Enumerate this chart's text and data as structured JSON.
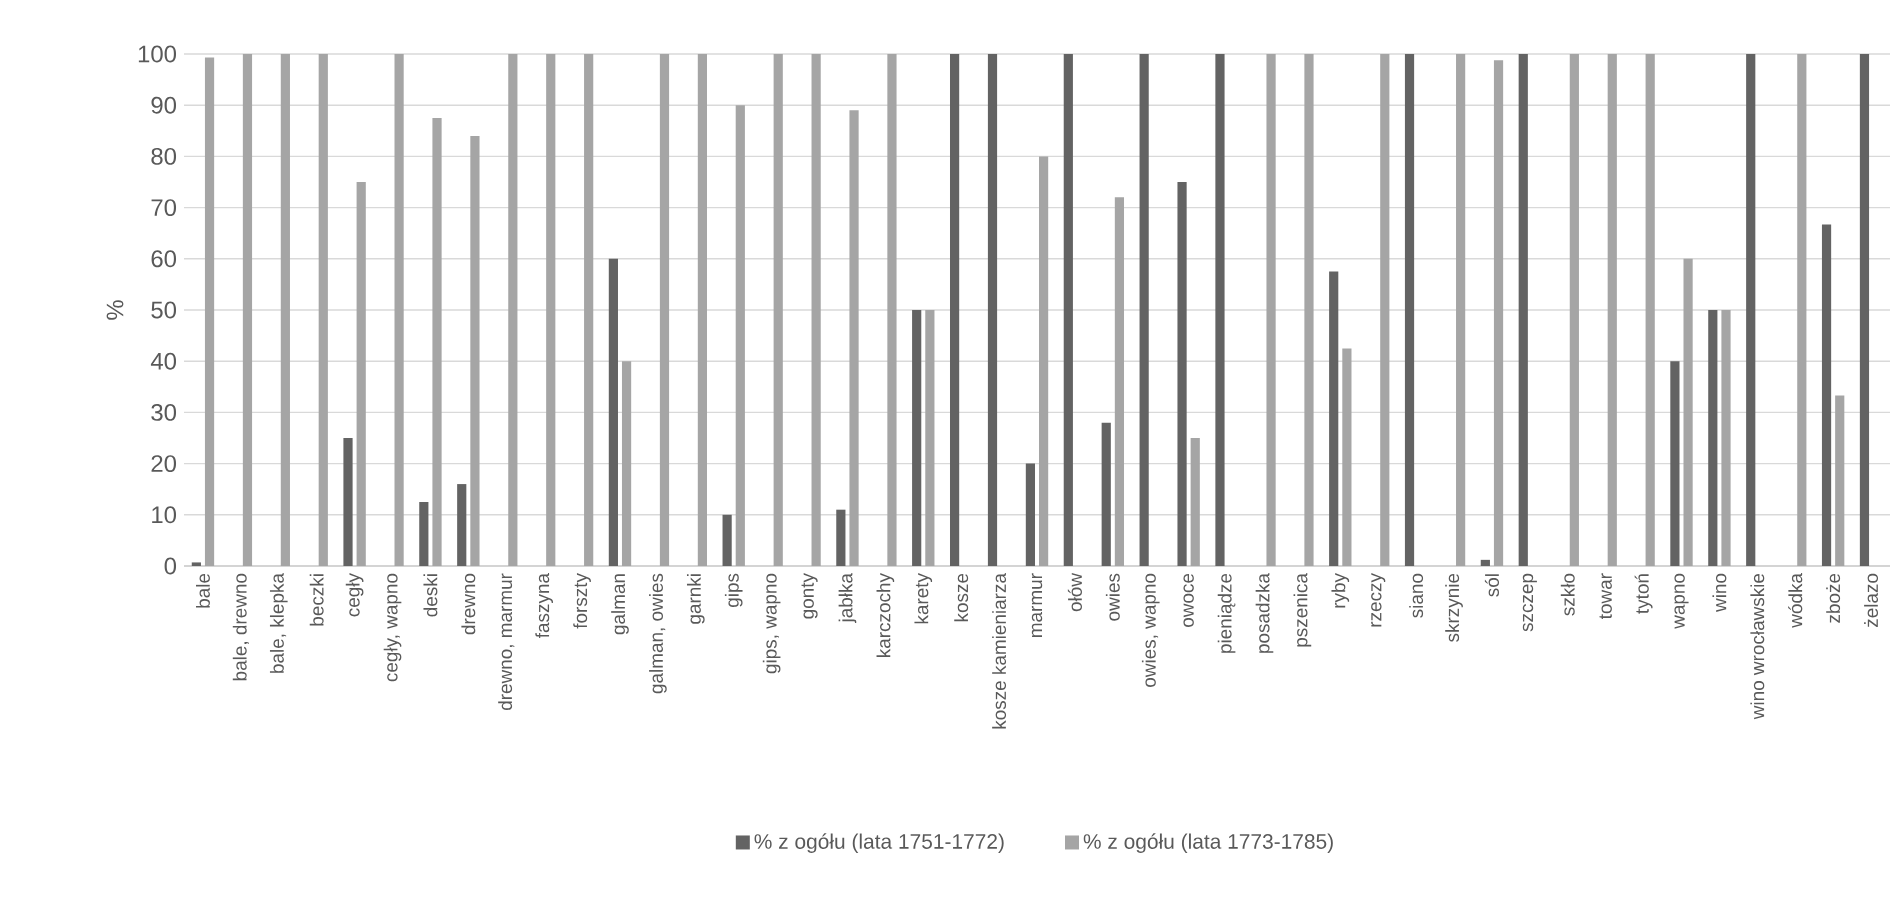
{
  "chart_data": {
    "type": "bar",
    "ylabel": "%",
    "categories": [
      "bale",
      "bale, drewno",
      "bale, klepka",
      "beczki",
      "cegły",
      "cegły, wapno",
      "deski",
      "drewno",
      "drewno, marmur",
      "faszyna",
      "forszty",
      "galman",
      "galman, owies",
      "garnki",
      "gips",
      "gips, wapno",
      "gonty",
      "jabłka",
      "karczochy",
      "karety",
      "kosze",
      "kosze kamieniarza",
      "marmur",
      "ołów",
      "owies",
      "owies, wapno",
      "owoce",
      "pieniądze",
      "posadzka",
      "pszenica",
      "ryby",
      "rzeczy",
      "siano",
      "skrzynie",
      "sól",
      "szczep",
      "szkło",
      "towar",
      "tytoń",
      "wapno",
      "wino",
      "wino wrocławskie",
      "wódka",
      "zboże",
      "żelazo"
    ],
    "series": [
      {
        "name": "% z ogółu (lata 1751-1772)",
        "color": "#636363",
        "values": [
          0.7,
          0,
          0,
          0,
          25,
          0,
          12.5,
          16,
          0,
          0,
          0,
          60,
          0,
          0,
          10,
          0,
          0,
          11,
          0,
          50,
          100,
          100,
          20,
          100,
          28,
          100,
          75,
          100,
          0,
          0,
          57.5,
          0,
          100,
          0,
          1.2,
          100,
          0,
          0,
          0,
          40,
          50,
          100,
          0,
          66.7,
          100
        ]
      },
      {
        "name": "% z ogółu (lata 1773-1785)",
        "color": "#a5a5a5",
        "values": [
          99.3,
          100,
          100,
          100,
          75,
          100,
          87.5,
          84,
          100,
          100,
          100,
          40,
          100,
          100,
          90,
          100,
          100,
          89,
          100,
          50,
          0,
          0,
          80,
          0,
          72,
          0,
          25,
          0,
          100,
          100,
          42.5,
          100,
          0,
          100,
          98.8,
          0,
          100,
          100,
          100,
          60,
          50,
          0,
          100,
          33.3,
          0
        ]
      }
    ],
    "ylim": [
      0,
      100
    ],
    "yticks": [
      0,
      10,
      20,
      30,
      40,
      50,
      60,
      70,
      80,
      90,
      100
    ],
    "grid": "y",
    "legend": "bottom"
  }
}
